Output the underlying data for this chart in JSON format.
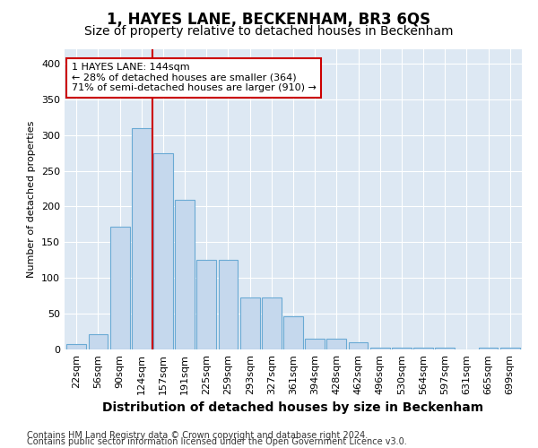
{
  "title": "1, HAYES LANE, BECKENHAM, BR3 6QS",
  "subtitle": "Size of property relative to detached houses in Beckenham",
  "xlabel": "Distribution of detached houses by size in Beckenham",
  "ylabel": "Number of detached properties",
  "footnote1": "Contains HM Land Registry data © Crown copyright and database right 2024.",
  "footnote2": "Contains public sector information licensed under the Open Government Licence v3.0.",
  "bar_labels": [
    "22sqm",
    "56sqm",
    "90sqm",
    "124sqm",
    "157sqm",
    "191sqm",
    "225sqm",
    "259sqm",
    "293sqm",
    "327sqm",
    "361sqm",
    "394sqm",
    "428sqm",
    "462sqm",
    "496sqm",
    "530sqm",
    "564sqm",
    "597sqm",
    "631sqm",
    "665sqm",
    "699sqm"
  ],
  "bar_values": [
    7,
    21,
    172,
    310,
    275,
    210,
    126,
    126,
    73,
    73,
    47,
    15,
    15,
    10,
    2,
    2,
    2,
    2,
    0,
    3,
    3
  ],
  "bar_color": "#c5d8ed",
  "bar_edgecolor": "#6aaad4",
  "ylim": [
    0,
    420
  ],
  "yticks": [
    0,
    50,
    100,
    150,
    200,
    250,
    300,
    350,
    400
  ],
  "vline_x": 4.0,
  "vline_color": "#cc0000",
  "annotation_text": "1 HAYES LANE: 144sqm\n← 28% of detached houses are smaller (364)\n71% of semi-detached houses are larger (910) →",
  "annotation_box_facecolor": "#ffffff",
  "annotation_box_edgecolor": "#cc0000",
  "fig_bg_color": "#ffffff",
  "plot_bg_color": "#dde8f3",
  "grid_color": "#ffffff",
  "title_fontsize": 12,
  "subtitle_fontsize": 10,
  "xlabel_fontsize": 10,
  "ylabel_fontsize": 8,
  "tick_fontsize": 8,
  "annotation_fontsize": 8,
  "footnote_fontsize": 7
}
